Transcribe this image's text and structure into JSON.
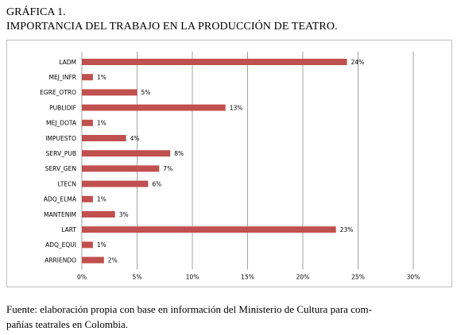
{
  "figure": {
    "label": "GRÁFICA 1.",
    "title": "IMPORTANCIA DEL TRABAJO EN LA PRODUCCIÓN DE TEATRO."
  },
  "footnote": {
    "line1": "Fuente: elaboración propia con base en información del Ministerio de Cultura para com-",
    "line2": "pañías teatrales en Colombia."
  },
  "colors": {
    "bar": "#c0504d",
    "grid": "#8c8c8c",
    "axis": "#8c8c8c"
  },
  "chart_data": {
    "type": "bar",
    "orientation": "horizontal",
    "categories": [
      "LADM",
      "MEJ_INFR",
      "EGRE_OTRO",
      "PUBLIDIF",
      "MEJ_DOTA",
      "IMPUESTO",
      "SERV_PUB",
      "SERV_GEN",
      "LTECN",
      "ADQ_ELMA",
      "MANTENIM",
      "LART",
      "ADQ_EQUI",
      "ARRIENDO"
    ],
    "values": [
      24,
      1,
      5,
      13,
      1,
      4,
      8,
      7,
      6,
      1,
      3,
      23,
      1,
      2
    ],
    "value_labels": [
      "24%",
      "1%",
      "5%",
      "13%",
      "1%",
      "4%",
      "8%",
      "7%",
      "6%",
      "1%",
      "3%",
      "23%",
      "1%",
      "2%"
    ],
    "xlim": [
      0,
      30
    ],
    "xticks": [
      0,
      5,
      10,
      15,
      20,
      25,
      30
    ],
    "xtick_labels": [
      "0%",
      "5%",
      "10%",
      "15%",
      "20%",
      "25%",
      "30%"
    ],
    "grid": "vertical"
  }
}
